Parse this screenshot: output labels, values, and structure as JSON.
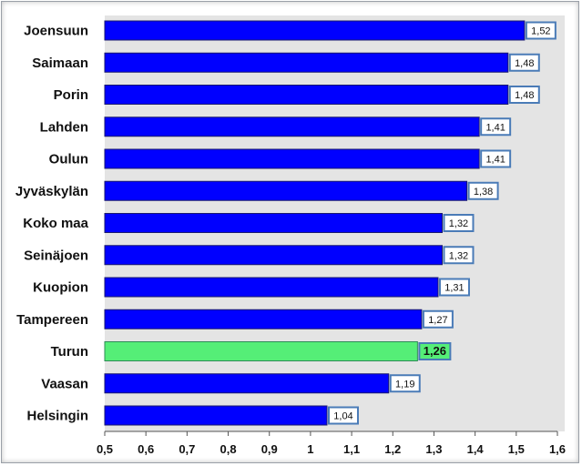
{
  "chart_data": {
    "type": "bar",
    "orientation": "horizontal",
    "title": "",
    "xlabel": "",
    "ylabel": "",
    "categories": [
      "Joensuun",
      "Saimaan",
      "Porin",
      "Lahden",
      "Oulun",
      "Jyväskylän",
      "Koko maa",
      "Seinäjoen",
      "Kuopion",
      "Tampereen",
      "Turun",
      "Vaasan",
      "Helsingin"
    ],
    "values": [
      1.52,
      1.48,
      1.48,
      1.41,
      1.41,
      1.38,
      1.32,
      1.32,
      1.31,
      1.27,
      1.26,
      1.19,
      1.04
    ],
    "value_labels": [
      "1,52",
      "1,48",
      "1,48",
      "1,41",
      "1,41",
      "1,38",
      "1,32",
      "1,32",
      "1,31",
      "1,27",
      "1,26",
      "1,19",
      "1,04"
    ],
    "highlighted": "Turun",
    "xlim": [
      0.5,
      1.6
    ],
    "x_ticks": [
      0.5,
      0.6,
      0.7,
      0.8,
      0.9,
      1.0,
      1.1,
      1.2,
      1.3,
      1.4,
      1.5,
      1.6
    ],
    "x_tick_labels": [
      "0,5",
      "0,6",
      "0,7",
      "0,8",
      "0,9",
      "1",
      "1,1",
      "1,2",
      "1,3",
      "1,4",
      "1,5",
      "1,6"
    ],
    "grid": false,
    "colors": {
      "bar": "#0000ff",
      "bar_border": "#1a1a6e",
      "highlight_bar": "#55ee77",
      "highlight_border": "#2e8b57",
      "plot_background": "#e4e4e4",
      "label_box_border": "#4a7bb7",
      "label_box_fill": "#ffffff",
      "highlight_label_fill": "#55ee77"
    }
  }
}
